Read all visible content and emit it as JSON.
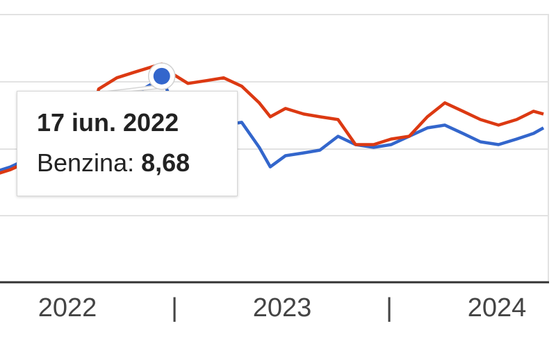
{
  "chart_data": {
    "type": "line",
    "ylim": [
      5.0,
      9.8
    ],
    "grid": true,
    "x_tick_labels": [
      "2022",
      "2023",
      "2024"
    ],
    "minor_tick_marks": [
      "|",
      "|"
    ],
    "series": [
      {
        "name": "Benzina",
        "color": "#3366cc",
        "points": [
          [
            "2021-09-01",
            6.95
          ],
          [
            "2021-10-01",
            7.05
          ],
          [
            "2021-11-01",
            7.2
          ],
          [
            "2022-01-01",
            7.4
          ],
          [
            "2022-02-10",
            7.6
          ],
          [
            "2022-03-01",
            8.35
          ],
          [
            "2022-04-01",
            8.2
          ],
          [
            "2022-05-01",
            8.35
          ],
          [
            "2022-06-01",
            8.55
          ],
          [
            "2022-06-17",
            8.68
          ],
          [
            "2022-07-01",
            8.3
          ],
          [
            "2022-08-01",
            8.1
          ],
          [
            "2022-09-01",
            7.9
          ],
          [
            "2022-10-01",
            7.8
          ],
          [
            "2022-11-01",
            7.85
          ],
          [
            "2022-12-01",
            7.4
          ],
          [
            "2022-12-20",
            7.05
          ],
          [
            "2023-01-15",
            7.25
          ],
          [
            "2023-02-15",
            7.3
          ],
          [
            "2023-03-15",
            7.35
          ],
          [
            "2023-04-15",
            7.6
          ],
          [
            "2023-05-15",
            7.45
          ],
          [
            "2023-06-15",
            7.4
          ],
          [
            "2023-07-15",
            7.45
          ],
          [
            "2023-08-15",
            7.6
          ],
          [
            "2023-09-15",
            7.75
          ],
          [
            "2023-10-15",
            7.8
          ],
          [
            "2023-11-15",
            7.65
          ],
          [
            "2023-12-15",
            7.5
          ],
          [
            "2024-01-15",
            7.45
          ],
          [
            "2024-02-15",
            7.55
          ],
          [
            "2024-03-15",
            7.65
          ],
          [
            "2024-04-01",
            7.75
          ]
        ]
      },
      {
        "name": "",
        "color": "#dc3912",
        "points": [
          [
            "2021-09-01",
            6.9
          ],
          [
            "2021-10-01",
            7.0
          ],
          [
            "2021-11-01",
            7.15
          ],
          [
            "2022-01-01",
            7.35
          ],
          [
            "2022-02-10",
            7.6
          ],
          [
            "2022-03-01",
            8.45
          ],
          [
            "2022-04-01",
            8.65
          ],
          [
            "2022-05-01",
            8.75
          ],
          [
            "2022-06-01",
            8.85
          ],
          [
            "2022-06-17",
            8.9
          ],
          [
            "2022-07-01",
            8.75
          ],
          [
            "2022-08-01",
            8.55
          ],
          [
            "2022-09-01",
            8.6
          ],
          [
            "2022-10-01",
            8.65
          ],
          [
            "2022-11-01",
            8.5
          ],
          [
            "2022-12-01",
            8.2
          ],
          [
            "2022-12-20",
            7.95
          ],
          [
            "2023-01-15",
            8.1
          ],
          [
            "2023-02-15",
            8.0
          ],
          [
            "2023-03-15",
            7.95
          ],
          [
            "2023-04-15",
            7.9
          ],
          [
            "2023-05-15",
            7.45
          ],
          [
            "2023-06-15",
            7.45
          ],
          [
            "2023-07-15",
            7.55
          ],
          [
            "2023-08-15",
            7.6
          ],
          [
            "2023-09-15",
            7.95
          ],
          [
            "2023-10-15",
            8.2
          ],
          [
            "2023-11-15",
            8.05
          ],
          [
            "2023-12-15",
            7.9
          ],
          [
            "2024-01-15",
            7.8
          ],
          [
            "2024-02-15",
            7.9
          ],
          [
            "2024-03-15",
            8.05
          ],
          [
            "2024-04-01",
            8.0
          ]
        ]
      }
    ],
    "highlight": {
      "date_label": "17 iun. 2022",
      "date": "2022-06-17",
      "series_label": "Benzina:",
      "value_label": "8,68",
      "value": 8.68
    }
  }
}
